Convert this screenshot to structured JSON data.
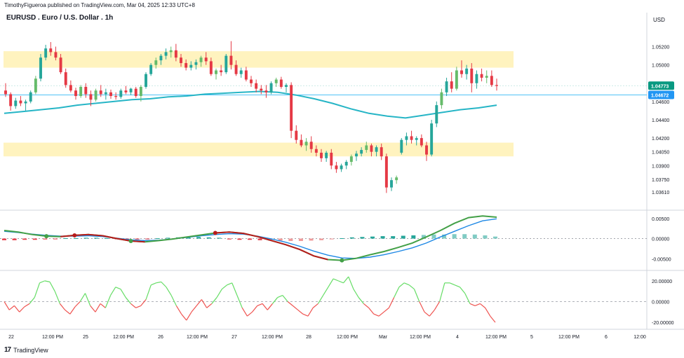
{
  "header": {
    "publisher_line": "TimothyFigueroa published on TradingView.com, Mar 04, 2025 12:33 UTC+8",
    "symbol_title": "EURUSD . Euro / U.S. Dollar . 1h",
    "currency": "USD"
  },
  "footer": {
    "brand": "TradingView",
    "logo_glyph": "17"
  },
  "colors": {
    "bull": "#26a69a",
    "bull_light": "#66bb6a",
    "bear": "#e53945",
    "zone": "#fff3bf",
    "ma": "#26b5c6",
    "hline": "#4fc3f7",
    "price_tag": "#089981",
    "level_tag": "#2196f3",
    "macd_fast": "#43a047",
    "macd_slow": "#1e88e5",
    "macd_fast_down": "#b71c1c",
    "osc_up": "#66dd66",
    "osc_down": "#ef5350"
  },
  "chart_data": [
    {
      "type": "candlestick",
      "title": "EURUSD . Euro / U.S. Dollar . 1h",
      "ylim": [
        1.0345,
        1.0548
      ],
      "y_ticks": [
        "1.05200",
        "1.05000",
        "1.04600",
        "1.04400",
        "1.04200",
        "1.04050",
        "1.03900",
        "1.03750",
        "1.03610"
      ],
      "x_ticks": [
        "22",
        "12:00 PM",
        "25",
        "12:00 PM",
        "26",
        "12:00 PM",
        "27",
        "12:00 PM",
        "28",
        "12:00 PM",
        "Mar",
        "12:00 PM",
        "4",
        "12:00 PM",
        "5",
        "12:00 PM",
        "6",
        "12:00"
      ],
      "current_price": "1.04773",
      "level": "1.04672",
      "zones": [
        [
          1.0497,
          1.0515
        ],
        [
          1.04,
          1.0415
        ]
      ],
      "series": [
        {
          "name": "",
          "values": [
            [
              1.0472,
              1.048,
              1.0465,
              1.0468
            ],
            [
              1.0468,
              1.047,
              1.045,
              1.0455
            ],
            [
              1.0455,
              1.0464,
              1.0452,
              1.0461
            ],
            [
              1.0461,
              1.0466,
              1.0455,
              1.0458
            ],
            [
              1.0458,
              1.0462,
              1.045,
              1.046
            ],
            [
              1.046,
              1.0472,
              1.0458,
              1.047
            ],
            [
              1.047,
              1.0488,
              1.0468,
              1.0485
            ],
            [
              1.0485,
              1.0512,
              1.0482,
              1.0508
            ],
            [
              1.0508,
              1.0522,
              1.0505,
              1.0518
            ],
            [
              1.0518,
              1.0525,
              1.051,
              1.0514
            ],
            [
              1.0514,
              1.052,
              1.0505,
              1.0508
            ],
            [
              1.0508,
              1.0512,
              1.049,
              1.0492
            ],
            [
              1.0492,
              1.0496,
              1.0475,
              1.0478
            ],
            [
              1.0478,
              1.0483,
              1.047,
              1.0472
            ],
            [
              1.0472,
              1.0475,
              1.0462,
              1.0466
            ],
            [
              1.0466,
              1.0478,
              1.0464,
              1.0476
            ],
            [
              1.0476,
              1.048,
              1.0464,
              1.0468
            ],
            [
              1.0468,
              1.0472,
              1.0455,
              1.0462
            ],
            [
              1.0462,
              1.0474,
              1.046,
              1.0472
            ],
            [
              1.0472,
              1.0478,
              1.0465,
              1.0468
            ],
            [
              1.0468,
              1.0474,
              1.0462,
              1.047
            ],
            [
              1.047,
              1.0473,
              1.0463,
              1.0466
            ],
            [
              1.0466,
              1.047,
              1.0462,
              1.0465
            ],
            [
              1.0465,
              1.0474,
              1.0463,
              1.0472
            ],
            [
              1.0472,
              1.0477,
              1.0468,
              1.047
            ],
            [
              1.047,
              1.0475,
              1.0467,
              1.0474
            ],
            [
              1.0474,
              1.0476,
              1.0464,
              1.0466
            ],
            [
              1.0466,
              1.0478,
              1.046,
              1.0476
            ],
            [
              1.0476,
              1.0492,
              1.0474,
              1.049
            ],
            [
              1.049,
              1.0502,
              1.0488,
              1.05
            ],
            [
              1.05,
              1.0508,
              1.0496,
              1.0505
            ],
            [
              1.0505,
              1.0512,
              1.05,
              1.051
            ],
            [
              1.051,
              1.0518,
              1.0506,
              1.0514
            ],
            [
              1.0514,
              1.052,
              1.0508,
              1.0516
            ],
            [
              1.0516,
              1.0523,
              1.0504,
              1.0508
            ],
            [
              1.0508,
              1.0512,
              1.0498,
              1.0502
            ],
            [
              1.0502,
              1.0506,
              1.0494,
              1.0497
            ],
            [
              1.0497,
              1.0504,
              1.0494,
              1.05
            ],
            [
              1.05,
              1.0506,
              1.0495,
              1.0503
            ],
            [
              1.0503,
              1.051,
              1.0498,
              1.0508
            ],
            [
              1.0508,
              1.0514,
              1.05,
              1.0504
            ],
            [
              1.0504,
              1.0508,
              1.0488,
              1.049
            ],
            [
              1.049,
              1.0496,
              1.0484,
              1.0494
            ],
            [
              1.0494,
              1.05,
              1.0488,
              1.0492
            ],
            [
              1.0492,
              1.0512,
              1.049,
              1.051
            ],
            [
              1.051,
              1.0526,
              1.0495,
              1.05
            ],
            [
              1.05,
              1.0505,
              1.0488,
              1.049
            ],
            [
              1.049,
              1.0497,
              1.0486,
              1.0494
            ],
            [
              1.0494,
              1.0498,
              1.0482,
              1.0484
            ],
            [
              1.0484,
              1.0488,
              1.0476,
              1.048
            ],
            [
              1.048,
              1.0484,
              1.047,
              1.0474
            ],
            [
              1.0474,
              1.0478,
              1.0468,
              1.0472
            ],
            [
              1.0472,
              1.0478,
              1.0464,
              1.047
            ],
            [
              1.047,
              1.0482,
              1.0468,
              1.048
            ],
            [
              1.048,
              1.0486,
              1.0476,
              1.0484
            ],
            [
              1.0484,
              1.0487,
              1.0474,
              1.0476
            ],
            [
              1.0476,
              1.048,
              1.047,
              1.0478
            ],
            [
              1.0478,
              1.0481,
              1.042,
              1.0428
            ],
            [
              1.0428,
              1.0434,
              1.0414,
              1.0418
            ],
            [
              1.0418,
              1.0424,
              1.041,
              1.0412
            ],
            [
              1.0412,
              1.042,
              1.0406,
              1.0416
            ],
            [
              1.0416,
              1.0422,
              1.0404,
              1.0408
            ],
            [
              1.0408,
              1.0412,
              1.04,
              1.0404
            ],
            [
              1.0404,
              1.0408,
              1.0394,
              1.0398
            ],
            [
              1.0398,
              1.0406,
              1.0394,
              1.0404
            ],
            [
              1.0404,
              1.0408,
              1.0386,
              1.039
            ],
            [
              1.039,
              1.0394,
              1.0382,
              1.0386
            ],
            [
              1.0386,
              1.0392,
              1.0383,
              1.039
            ],
            [
              1.039,
              1.0396,
              1.0386,
              1.0394
            ],
            [
              1.0394,
              1.0402,
              1.039,
              1.04
            ],
            [
              1.04,
              1.0406,
              1.0395,
              1.0403
            ],
            [
              1.0403,
              1.041,
              1.04,
              1.0407
            ],
            [
              1.0407,
              1.0416,
              1.0404,
              1.0412
            ],
            [
              1.0412,
              1.0414,
              1.04,
              1.0405
            ],
            [
              1.0405,
              1.0412,
              1.04,
              1.041
            ],
            [
              1.041,
              1.0414,
              1.0396,
              1.04
            ],
            [
              1.04,
              1.0403,
              1.036,
              1.0366
            ],
            [
              1.0366,
              1.0377,
              1.0362,
              1.0374
            ],
            [
              1.0374,
              1.0379,
              1.037,
              1.0377
            ],
            [
              1.0404,
              1.042,
              1.0402,
              1.0418
            ],
            [
              1.0418,
              1.0426,
              1.0412,
              1.0422
            ],
            [
              1.0422,
              1.0428,
              1.0414,
              1.0418
            ],
            [
              1.0418,
              1.0422,
              1.0412,
              1.042
            ],
            [
              1.042,
              1.0424,
              1.041,
              1.0412
            ],
            [
              1.0412,
              1.0416,
              1.0395,
              1.0402
            ],
            [
              1.0402,
              1.044,
              1.04,
              1.0436
            ],
            [
              1.0436,
              1.046,
              1.0432,
              1.0456
            ],
            [
              1.0456,
              1.0474,
              1.0452,
              1.047
            ],
            [
              1.047,
              1.0486,
              1.0466,
              1.0482
            ],
            [
              1.0482,
              1.0492,
              1.047,
              1.0474
            ],
            [
              1.0474,
              1.0498,
              1.0472,
              1.0494
            ],
            [
              1.0494,
              1.0505,
              1.0486,
              1.049
            ],
            [
              1.049,
              1.05,
              1.0484,
              1.0496
            ],
            [
              1.0496,
              1.0502,
              1.047,
              1.048
            ],
            [
              1.048,
              1.0494,
              1.0474,
              1.049
            ],
            [
              1.049,
              1.0496,
              1.0482,
              1.0486
            ],
            [
              1.0486,
              1.0494,
              1.048,
              1.0488
            ],
            [
              1.0488,
              1.0494,
              1.0476,
              1.0478
            ],
            [
              1.0478,
              1.0485,
              1.0472,
              1.0477
            ]
          ]
        },
        {
          "name": "",
          "values": [
            1.0447,
            1.0449,
            1.0451,
            1.0453,
            1.0456,
            1.0458,
            1.046,
            1.0462,
            1.0463,
            1.0465,
            1.0466,
            1.0468,
            1.0469,
            1.047,
            1.0471,
            1.047,
            1.0467,
            1.0463,
            1.0458,
            1.0452,
            1.0447,
            1.0444,
            1.0442,
            1.0445,
            1.0448,
            1.0451,
            1.0453,
            1.0456
          ]
        }
      ]
    },
    {
      "type": "line",
      "y_ticks": [
        "0.00500",
        "0.00000",
        "-0.00500"
      ],
      "ylim": [
        -0.0072,
        0.006
      ],
      "series": [
        {
          "name": "",
          "values": [
            0.002,
            0.0016,
            0.001,
            0.0006,
            0.0005,
            0.0008,
            0.001,
            0.0007,
            0.0,
            -0.0006,
            -0.0008,
            -0.0005,
            -0.0001,
            0.0004,
            0.0009,
            0.0014,
            0.0016,
            0.0013,
            0.0005,
            -0.0005,
            -0.0015,
            -0.0027,
            -0.0043,
            -0.0052,
            -0.0054,
            -0.0049,
            -0.004,
            -0.0032,
            -0.0022,
            -0.0011,
            0.0004,
            0.002,
            0.0038,
            0.0052,
            0.0056,
            0.0053
          ]
        },
        {
          "name": "",
          "values": [
            0.0018,
            0.0015,
            0.0011,
            0.0008,
            0.0006,
            0.0006,
            0.0007,
            0.0005,
            0.0001,
            -0.0003,
            -0.0005,
            -0.0004,
            -0.0001,
            0.0003,
            0.0007,
            0.001,
            0.0012,
            0.0011,
            0.0006,
            -0.0001,
            -0.0009,
            -0.0019,
            -0.0031,
            -0.0041,
            -0.0048,
            -0.0049,
            -0.0046,
            -0.004,
            -0.0032,
            -0.0023,
            -0.0011,
            0.0004,
            0.0018,
            0.0032,
            0.0044,
            0.0049
          ]
        }
      ],
      "histogram": [
        -0.0004,
        -0.0004,
        -0.0003,
        -0.0003,
        -0.0002,
        -0.0001,
        0.0001,
        0.0001,
        0.0002,
        0.0002,
        0.0001,
        -0.0001,
        -0.0002,
        -0.0002,
        -0.0001,
        0.0001,
        0.0002,
        0.0003,
        0.0004,
        0.0004,
        0.0003,
        0.0002,
        -0.0002,
        -0.0003,
        -0.0003,
        -0.0004,
        -0.0005,
        -0.0005,
        -0.0006,
        -0.0006,
        -0.0005,
        -0.0004,
        -0.0002,
        0.0001,
        0.0003,
        0.0004,
        0.0005,
        0.0006,
        0.0006,
        0.0007,
        0.0008,
        0.0009,
        0.001,
        0.001,
        0.0011,
        0.0011,
        0.001,
        0.0008,
        0.0005
      ]
    },
    {
      "type": "line",
      "y_ticks": [
        "20.00000",
        "0.00000",
        "-20.00000"
      ],
      "ylim": [
        -24,
        26
      ],
      "series": [
        {
          "name": "",
          "values": [
            0,
            -8,
            -4,
            -10,
            -5,
            -2,
            4,
            18,
            20,
            19,
            10,
            -2,
            -8,
            -12,
            -5,
            0,
            8,
            -4,
            -10,
            -2,
            -6,
            6,
            14,
            12,
            4,
            -2,
            -6,
            -4,
            2,
            16,
            18,
            19,
            14,
            6,
            -4,
            -12,
            -18,
            -10,
            -4,
            2,
            -6,
            -2,
            4,
            12,
            16,
            18,
            6,
            -6,
            -14,
            -10,
            -4,
            -2,
            -8,
            -2,
            4,
            6,
            0,
            -4,
            -8,
            -12,
            -14,
            -6,
            -2,
            6,
            14,
            22,
            20,
            18,
            24,
            12,
            4,
            -2,
            -6,
            -12,
            -14,
            -10,
            -6,
            4,
            14,
            18,
            16,
            12,
            0,
            -10,
            -14,
            -8,
            0,
            18,
            18,
            16,
            14,
            8,
            -2,
            -4,
            -2,
            -6,
            -14,
            -20
          ]
        }
      ]
    }
  ]
}
